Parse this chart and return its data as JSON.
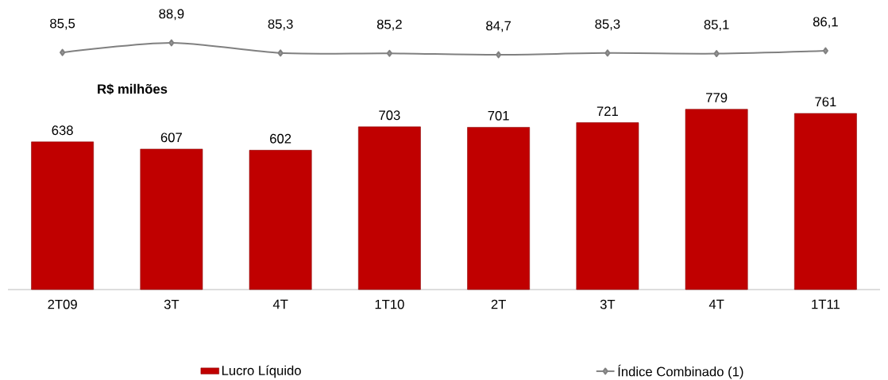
{
  "chart_data": [
    {
      "type": "line",
      "categories": [
        null,
        null,
        null,
        null,
        null,
        null,
        null,
        null
      ],
      "legend": "bottom",
      "data_labels": true,
      "marker": "diamond",
      "series": [
        {
          "name": "Índice Combinado (1)",
          "color": "#808080",
          "values": [
            85.5,
            88.9,
            85.3,
            85.2,
            84.7,
            85.3,
            85.1,
            86.1
          ],
          "value_labels": [
            "85,5",
            "88,9",
            "85,3",
            "85,2",
            "84,7",
            "85,3",
            "85,1",
            "86,1"
          ]
        }
      ]
    },
    {
      "type": "bar",
      "ylabel": "R$ milhões",
      "categories": [
        "2T09",
        "3T",
        "4T",
        "1T10",
        "2T",
        "3T",
        "4T",
        "1T11"
      ],
      "legend": "bottom",
      "data_labels": true,
      "series": [
        {
          "name": "Lucro Líquido",
          "color": "#c00000",
          "values": [
            638,
            607,
            602,
            703,
            701,
            721,
            779,
            761
          ]
        }
      ]
    }
  ]
}
